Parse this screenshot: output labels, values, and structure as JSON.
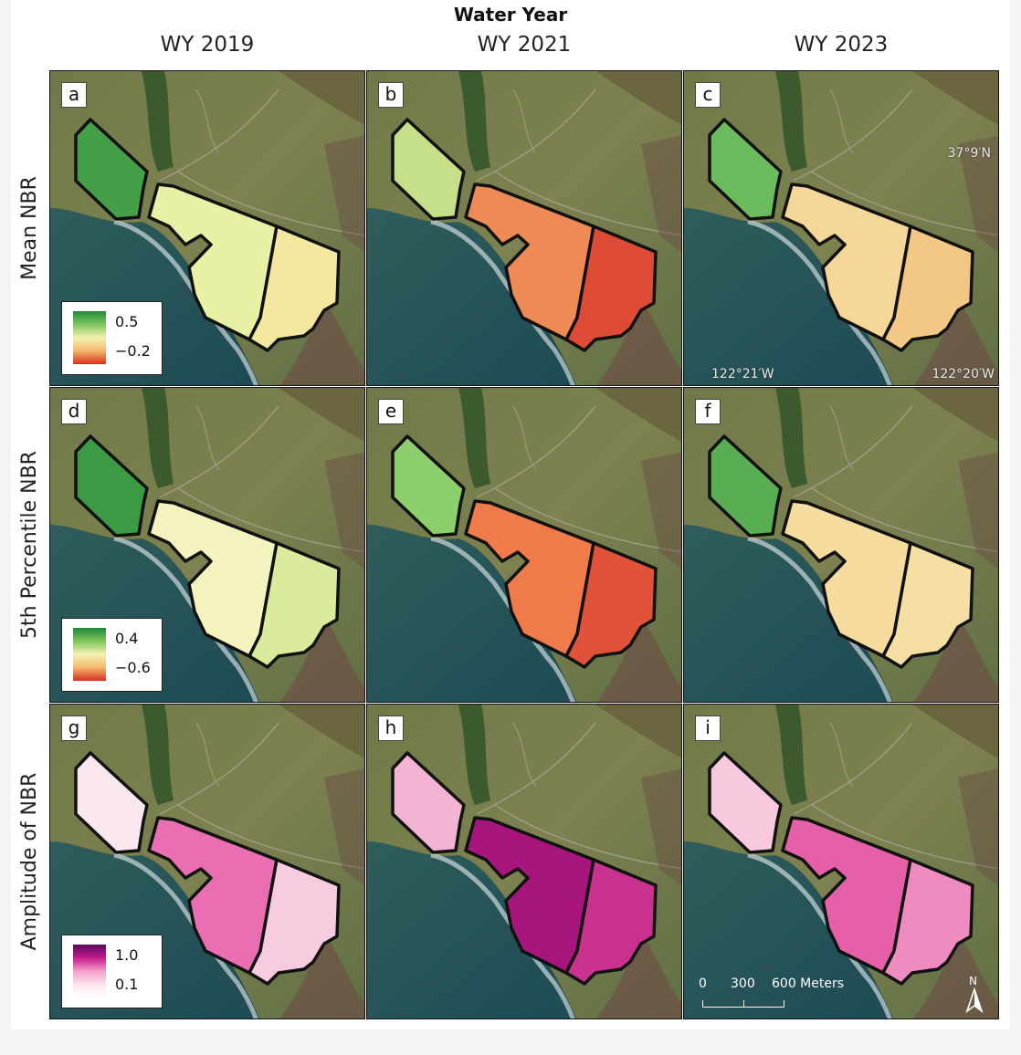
{
  "figure": {
    "super_title": "Water Year",
    "columns": [
      "WY 2019",
      "WY 2021",
      "WY 2023"
    ],
    "rows": [
      {
        "label": "Mean NBR",
        "legend": {
          "max": "0.5",
          "min": "−0.2",
          "ramp": [
            "#1f8a3a",
            "#7fc45c",
            "#f4f2b2",
            "#f4b66d",
            "#d7301f"
          ]
        }
      },
      {
        "label": "5th Percentile NBR",
        "legend": {
          "max": "0.4",
          "min": "−0.6",
          "ramp": [
            "#1f8a3a",
            "#7fc45c",
            "#f4f2b2",
            "#f4b66d",
            "#d7301f"
          ]
        }
      },
      {
        "label": "Amplitude of NBR",
        "legend": {
          "max": "1.0",
          "min": "0.1",
          "ramp": [
            "#5c0a5e",
            "#c51b8a",
            "#f29ec8",
            "#fce4ef",
            "#ffffff"
          ]
        }
      }
    ],
    "panels": [
      {
        "letter": "a",
        "fills": [
          "#43a047",
          "#e8f1a6",
          "#f4e8a0"
        ]
      },
      {
        "letter": "b",
        "fills": [
          "#c6e08a",
          "#ee8a55",
          "#dd4b36"
        ]
      },
      {
        "letter": "c",
        "fills": [
          "#6cbb5e",
          "#f6d79a",
          "#f3c885"
        ]
      },
      {
        "letter": "d",
        "fills": [
          "#3c9a45",
          "#f5f3bf",
          "#d9ec9d"
        ]
      },
      {
        "letter": "e",
        "fills": [
          "#8ccf6c",
          "#ef7a4a",
          "#e0533a"
        ]
      },
      {
        "letter": "f",
        "fills": [
          "#59ad52",
          "#f7dc9f",
          "#f6dfa2"
        ]
      },
      {
        "letter": "g",
        "fills": [
          "#fbe7ef",
          "#ea6fb2",
          "#f8cce0"
        ]
      },
      {
        "letter": "h",
        "fills": [
          "#f3b3d2",
          "#a8167d",
          "#c9338f"
        ]
      },
      {
        "letter": "i",
        "fills": [
          "#f8c9de",
          "#e560a8",
          "#ee8cc0"
        ]
      }
    ],
    "coordinates": {
      "lat": "37°9′N",
      "lon_west": "122°21′W",
      "lon_east": "122°20′W"
    },
    "scalebar": {
      "labels": [
        "0",
        "300",
        "600 Meters"
      ]
    },
    "north_label": "N"
  }
}
